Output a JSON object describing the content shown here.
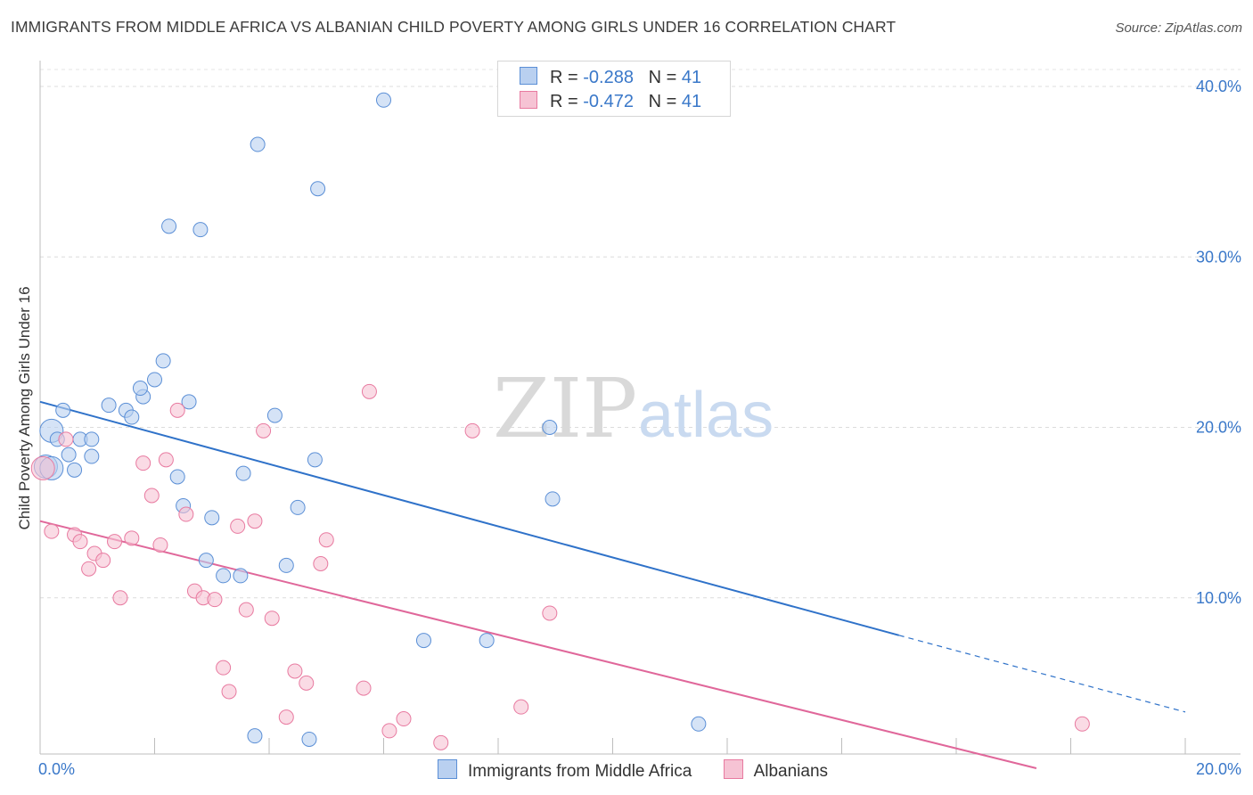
{
  "header": {
    "title": "IMMIGRANTS FROM MIDDLE AFRICA VS ALBANIAN CHILD POVERTY AMONG GIRLS UNDER 16 CORRELATION CHART",
    "source": "Source: ZipAtlas.com"
  },
  "watermark": {
    "zip": "ZIP",
    "atlas": "atlas"
  },
  "legend": {
    "rows": [
      {
        "r_label": "R =",
        "r_value": "-0.288",
        "n_label": "N =",
        "n_value": "41"
      },
      {
        "r_label": "R =",
        "r_value": "-0.472",
        "n_label": "N =",
        "n_value": "41"
      }
    ]
  },
  "chart_data": {
    "type": "scatter",
    "ylabel": "Child Poverty Among Girls Under 16",
    "xlabel": "",
    "xlim": [
      0,
      20
    ],
    "ylim": [
      0,
      40
    ],
    "x_tick_labels": [
      "0.0%",
      "20.0%"
    ],
    "y_ticks": [
      10,
      20,
      30,
      40
    ],
    "y_tick_labels": [
      "10.0%",
      "20.0%",
      "30.0%",
      "40.0%"
    ],
    "grid": true,
    "colors": {
      "blue": "#5b8fd6",
      "blue_fill": "#b9d0f0",
      "pink": "#e87aa0",
      "pink_fill": "#f6c3d4",
      "blue_line": "#2f72c9",
      "pink_line": "#e0679a"
    },
    "series": [
      {
        "name": "Immigrants from Middle Africa",
        "color": "#5b8fd6",
        "points": [
          [
            0.2,
            19.8
          ],
          [
            0.4,
            21.0
          ],
          [
            0.3,
            19.3
          ],
          [
            0.7,
            19.3
          ],
          [
            0.9,
            19.3
          ],
          [
            0.5,
            18.4
          ],
          [
            0.9,
            18.3
          ],
          [
            0.6,
            17.5
          ],
          [
            1.2,
            21.3
          ],
          [
            1.5,
            21.0
          ],
          [
            1.6,
            20.6
          ],
          [
            1.8,
            21.8
          ],
          [
            1.75,
            22.3
          ],
          [
            2.0,
            22.8
          ],
          [
            2.15,
            23.9
          ],
          [
            2.6,
            21.5
          ],
          [
            2.4,
            17.1
          ],
          [
            2.5,
            15.4
          ],
          [
            3.0,
            14.7
          ],
          [
            2.9,
            12.2
          ],
          [
            3.2,
            11.3
          ],
          [
            3.5,
            11.3
          ],
          [
            3.55,
            17.3
          ],
          [
            4.1,
            20.7
          ],
          [
            4.5,
            15.3
          ],
          [
            4.3,
            11.9
          ],
          [
            4.8,
            18.1
          ],
          [
            2.25,
            31.8
          ],
          [
            2.8,
            31.6
          ],
          [
            3.8,
            36.6
          ],
          [
            4.85,
            34.0
          ],
          [
            6.0,
            39.2
          ],
          [
            8.9,
            20.0
          ],
          [
            8.95,
            15.8
          ],
          [
            6.7,
            7.5
          ],
          [
            7.8,
            7.5
          ],
          [
            11.5,
            2.6
          ],
          [
            3.75,
            1.9
          ],
          [
            4.7,
            1.7
          ],
          [
            0.1,
            17.7
          ],
          [
            0.2,
            17.6
          ]
        ]
      },
      {
        "name": "Albanians",
        "color": "#e87aa0",
        "points": [
          [
            0.05,
            17.6
          ],
          [
            0.2,
            13.9
          ],
          [
            0.45,
            19.3
          ],
          [
            0.6,
            13.7
          ],
          [
            0.7,
            13.3
          ],
          [
            0.85,
            11.7
          ],
          [
            0.95,
            12.6
          ],
          [
            1.1,
            12.2
          ],
          [
            1.3,
            13.3
          ],
          [
            1.4,
            10.0
          ],
          [
            1.6,
            13.5
          ],
          [
            1.8,
            17.9
          ],
          [
            1.95,
            16.0
          ],
          [
            2.1,
            13.1
          ],
          [
            2.2,
            18.1
          ],
          [
            2.4,
            21.0
          ],
          [
            2.55,
            14.9
          ],
          [
            2.7,
            10.4
          ],
          [
            2.85,
            10.0
          ],
          [
            3.05,
            9.9
          ],
          [
            3.2,
            5.9
          ],
          [
            3.3,
            4.5
          ],
          [
            3.45,
            14.2
          ],
          [
            3.6,
            9.3
          ],
          [
            3.75,
            14.5
          ],
          [
            3.9,
            19.8
          ],
          [
            4.05,
            8.8
          ],
          [
            4.3,
            3.0
          ],
          [
            4.45,
            5.7
          ],
          [
            4.65,
            5.0
          ],
          [
            4.9,
            12.0
          ],
          [
            5.0,
            13.4
          ],
          [
            5.65,
            4.7
          ],
          [
            5.75,
            22.1
          ],
          [
            6.1,
            2.2
          ],
          [
            6.35,
            2.9
          ],
          [
            7.0,
            1.5
          ],
          [
            7.55,
            19.8
          ],
          [
            8.4,
            3.6
          ],
          [
            8.9,
            9.1
          ],
          [
            18.2,
            2.6
          ]
        ]
      }
    ],
    "trendlines": [
      {
        "series": "Immigrants from Middle Africa",
        "x0": 0,
        "y0": 21.5,
        "x1": 15.0,
        "y1": 7.8,
        "dashed_to_x": 20.0,
        "dashed_to_y": 3.3
      },
      {
        "series": "Albanians",
        "x0": 0,
        "y0": 14.5,
        "x1": 17.4,
        "y1": 0
      }
    ]
  }
}
